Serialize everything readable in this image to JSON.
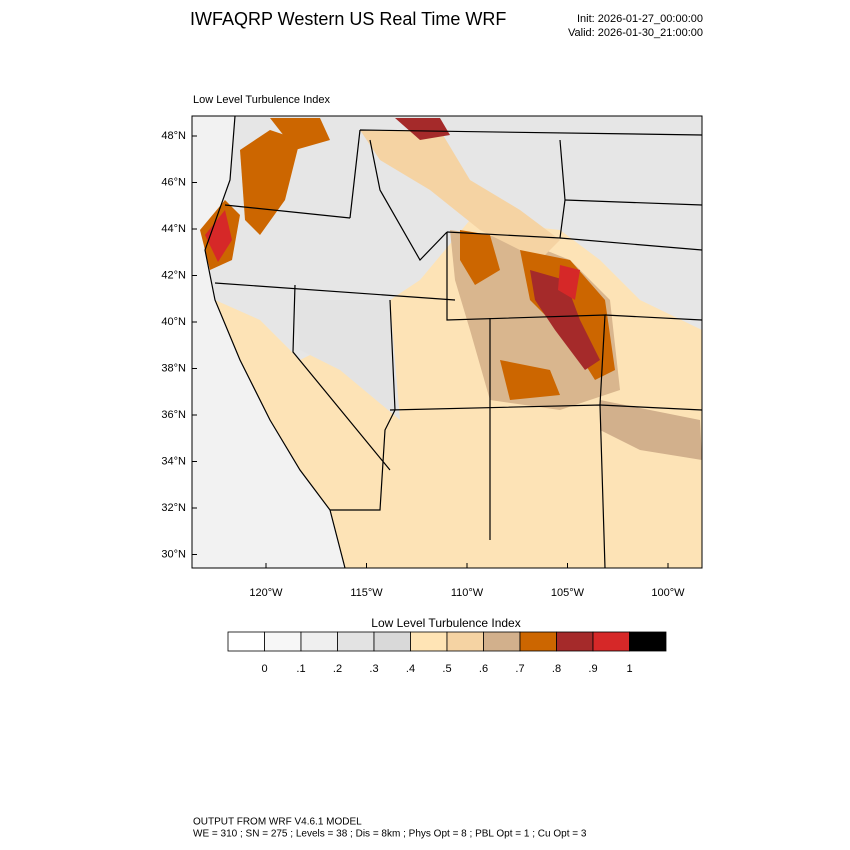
{
  "header": {
    "title": "IWFAQRP Western US Real Time WRF",
    "init": "Init: 2026-01-27_00:00:00",
    "valid": "Valid: 2026-01-30_21:00:00"
  },
  "map": {
    "subtitle": "Low Level Turbulence Index",
    "lat_ticks": [
      {
        "value": 48,
        "label": "48°N"
      },
      {
        "value": 46,
        "label": "46°N"
      },
      {
        "value": 44,
        "label": "44°N"
      },
      {
        "value": 42,
        "label": "42°N"
      },
      {
        "value": 40,
        "label": "40°N"
      },
      {
        "value": 38,
        "label": "38°N"
      },
      {
        "value": 36,
        "label": "36°N"
      },
      {
        "value": 34,
        "label": "34°N"
      },
      {
        "value": 32,
        "label": "32°N"
      },
      {
        "value": 30,
        "label": "30°N"
      }
    ],
    "lon_ticks": [
      {
        "value": -120,
        "label": "120°W"
      },
      {
        "value": -115,
        "label": "115°W"
      },
      {
        "value": -110,
        "label": "110°W"
      },
      {
        "value": -105,
        "label": "105°W"
      },
      {
        "value": -100,
        "label": "100°W"
      }
    ]
  },
  "colorbar": {
    "title": "Low Level Turbulence Index",
    "colors": [
      "#ffffff",
      "#f7f7f7",
      "#efefef",
      "#e3e3e3",
      "#d9d9d9",
      "#ffe4b5",
      "#f5d3a3",
      "#d2b08c",
      "#cc6600",
      "#a52a2a",
      "#d62828",
      "#000000"
    ],
    "labels": [
      "0",
      ".1",
      ".2",
      ".3",
      ".4",
      ".5",
      ".6",
      ".7",
      ".8",
      ".9",
      "1"
    ]
  },
  "footer": {
    "line1": "OUTPUT FROM WRF V4.6.1 MODEL",
    "line2": "WE = 310 ; SN = 275 ; Levels = 38 ; Dis = 8km ; Phys Opt = 8 ; PBL Opt = 1 ; Cu Opt = 3"
  }
}
